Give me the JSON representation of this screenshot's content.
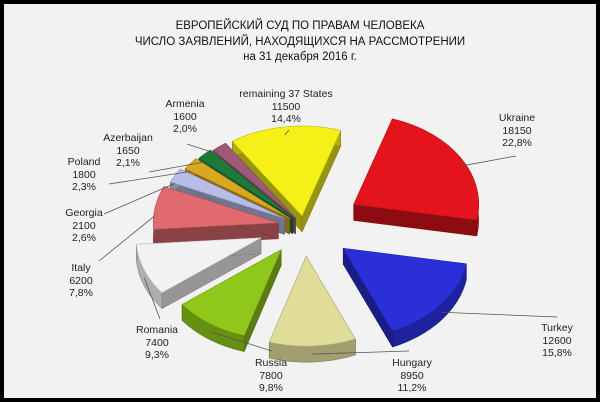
{
  "title_lines": [
    "ЕВРОПЕЙСКИЙ СУД ПО ПРАВАМ ЧЕЛОВЕКА",
    "ЧИСЛО ЗАЯВЛЕНИЙ, НАХОДЯЩИХСЯ НА РАССМОТРЕНИИ",
    "на 31 декабря 2016 г."
  ],
  "chart_data": {
    "type": "pie",
    "title": "ЕВРОПЕЙСКИЙ СУД ПО ПРАВАМ ЧЕЛОВЕКА ЧИСЛО ЗАЯВЛЕНИЙ, НАХОДЯЩИХСЯ НА РАССМОТРЕНИИ на 31 декабря 2016 г.",
    "style": "3d-exploded",
    "slices": [
      {
        "label": "Ukraine",
        "value": 18150,
        "percent": "22,8%",
        "value_text": "18150",
        "color": "#e4141c"
      },
      {
        "label": "Turkey",
        "value": 12600,
        "percent": "15,8%",
        "value_text": "12600",
        "color": "#2a2fd8"
      },
      {
        "label": "Hungary",
        "value": 8950,
        "percent": "11,2%",
        "value_text": "8950",
        "color": "#e0dc9a"
      },
      {
        "label": "Russia",
        "value": 7800,
        "percent": "9,8%",
        "value_text": "7800",
        "color": "#8fc81a"
      },
      {
        "label": "Romania",
        "value": 7400,
        "percent": "9,3%",
        "value_text": "7400",
        "color": "#f2f2f2"
      },
      {
        "label": "Italy",
        "value": 6200,
        "percent": "7,8%",
        "value_text": "6200",
        "color": "#e06a6e"
      },
      {
        "label": "Georgia",
        "value": 2100,
        "percent": "2,6%",
        "value_text": "2100",
        "color": "#b8bde8"
      },
      {
        "label": "Poland",
        "value": 1800,
        "percent": "2,3%",
        "value_text": "1800",
        "color": "#d9a820"
      },
      {
        "label": "Azerbaijan",
        "value": 1650,
        "percent": "2,1%",
        "value_text": "1650",
        "color": "#1e7a3a"
      },
      {
        "label": "Armenia",
        "value": 1600,
        "percent": "2,0%",
        "value_text": "1600",
        "color": "#a05878"
      },
      {
        "label": "remaining 37 States",
        "value": 11500,
        "percent": "14,4%",
        "value_text": "11500",
        "color": "#f4f018"
      }
    ]
  }
}
